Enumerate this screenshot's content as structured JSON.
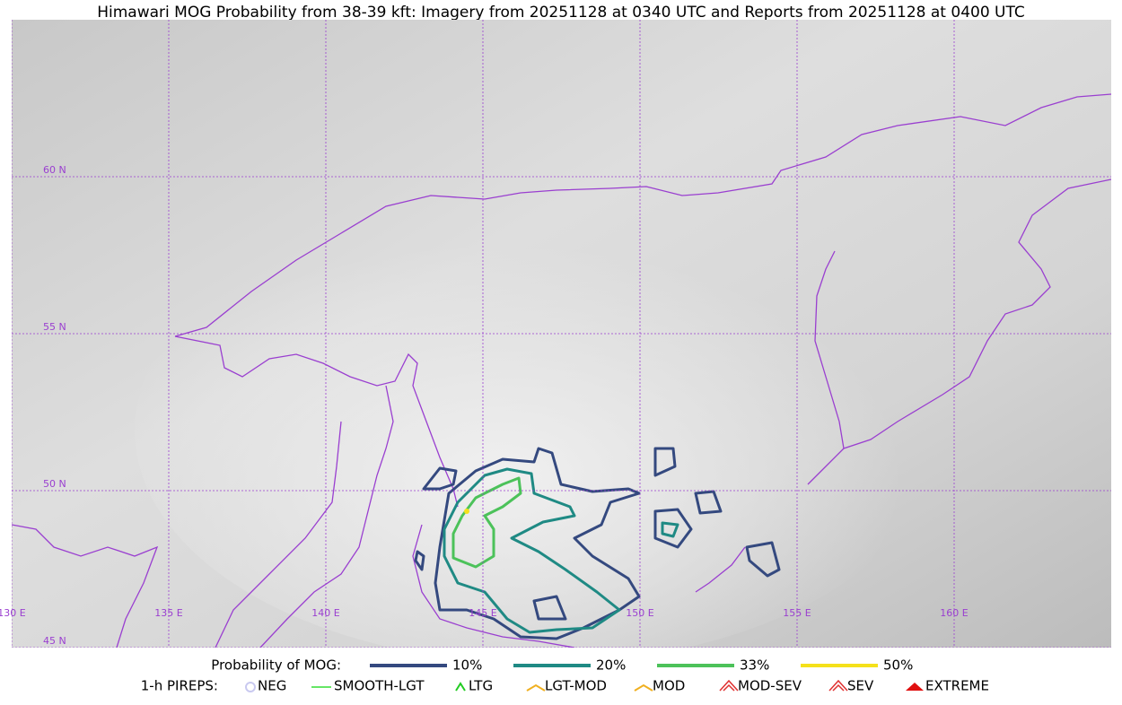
{
  "header": {
    "title": "Himawari MOG Probability from 38-39 kft: Imagery from 20251128 at 0340 UTC and Reports from 20251128 at 0400 UTC"
  },
  "map": {
    "lon_lines": [
      {
        "value": 130,
        "label": "130 E"
      },
      {
        "value": 135,
        "label": "135 E"
      },
      {
        "value": 140,
        "label": "140 E"
      },
      {
        "value": 145,
        "label": "145 E"
      },
      {
        "value": 150,
        "label": "150 E"
      },
      {
        "value": 155,
        "label": "155 E"
      },
      {
        "value": 160,
        "label": "160 E"
      }
    ],
    "lat_lines": [
      {
        "value": 60,
        "label": "60 N"
      },
      {
        "value": 55,
        "label": "55 N"
      },
      {
        "value": 50,
        "label": "50 N"
      },
      {
        "value": 45,
        "label": "45 N"
      }
    ]
  },
  "legend": {
    "probability": {
      "title": "Probability of MOG:",
      "items": [
        {
          "label": "10%",
          "color": "#34497f"
        },
        {
          "label": "20%",
          "color": "#1f8a84"
        },
        {
          "label": "33%",
          "color": "#4cc25a"
        },
        {
          "label": "50%",
          "color": "#f5e11a"
        }
      ]
    },
    "pireps": {
      "title": "1-h PIREPS:",
      "items": [
        {
          "label": "NEG",
          "color": "#c9c9f0"
        },
        {
          "label": "SMOOTH-LGT",
          "color": "#33dd33"
        },
        {
          "label": "LTG",
          "color": "#22cc22"
        },
        {
          "label": "LGT-MOD",
          "color": "#f0b020"
        },
        {
          "label": "MOD",
          "color": "#f0b020"
        },
        {
          "label": "MOD-SEV",
          "color": "#e03030"
        },
        {
          "label": "SEV",
          "color": "#e03030"
        },
        {
          "label": "EXTREME",
          "color": "#e01010"
        }
      ]
    }
  }
}
